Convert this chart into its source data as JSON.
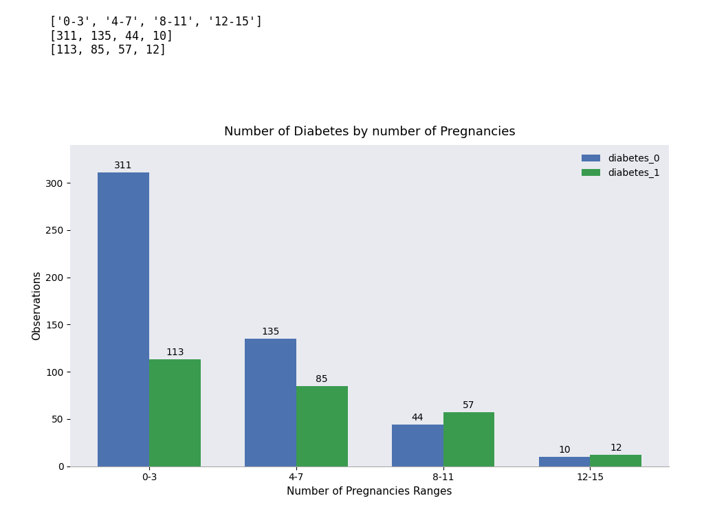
{
  "categories": [
    "0-3",
    "4-7",
    "8-11",
    "12-15"
  ],
  "diabetes_0": [
    311,
    135,
    44,
    10
  ],
  "diabetes_1": [
    113,
    85,
    57,
    12
  ],
  "bar_color_0": "#4c72b0",
  "bar_color_1": "#3a9b4f",
  "title": "Number of Diabetes by number of Pregnancies",
  "xlabel": "Number of Pregnancies Ranges",
  "ylabel": "Observations",
  "legend_labels": [
    "diabetes_0",
    "diabetes_1"
  ],
  "background_color": "#e8eaf0",
  "ylim": [
    0,
    340
  ],
  "bar_width": 0.35,
  "annotation_fontsize": 10,
  "axis_label_fontsize": 11,
  "title_fontsize": 13,
  "tick_fontsize": 10,
  "header_text": "['0-3', '4-7', '8-11', '12-15']\n[311, 135, 44, 10]\n[113, 85, 57, 12]",
  "header_fontsize": 12
}
